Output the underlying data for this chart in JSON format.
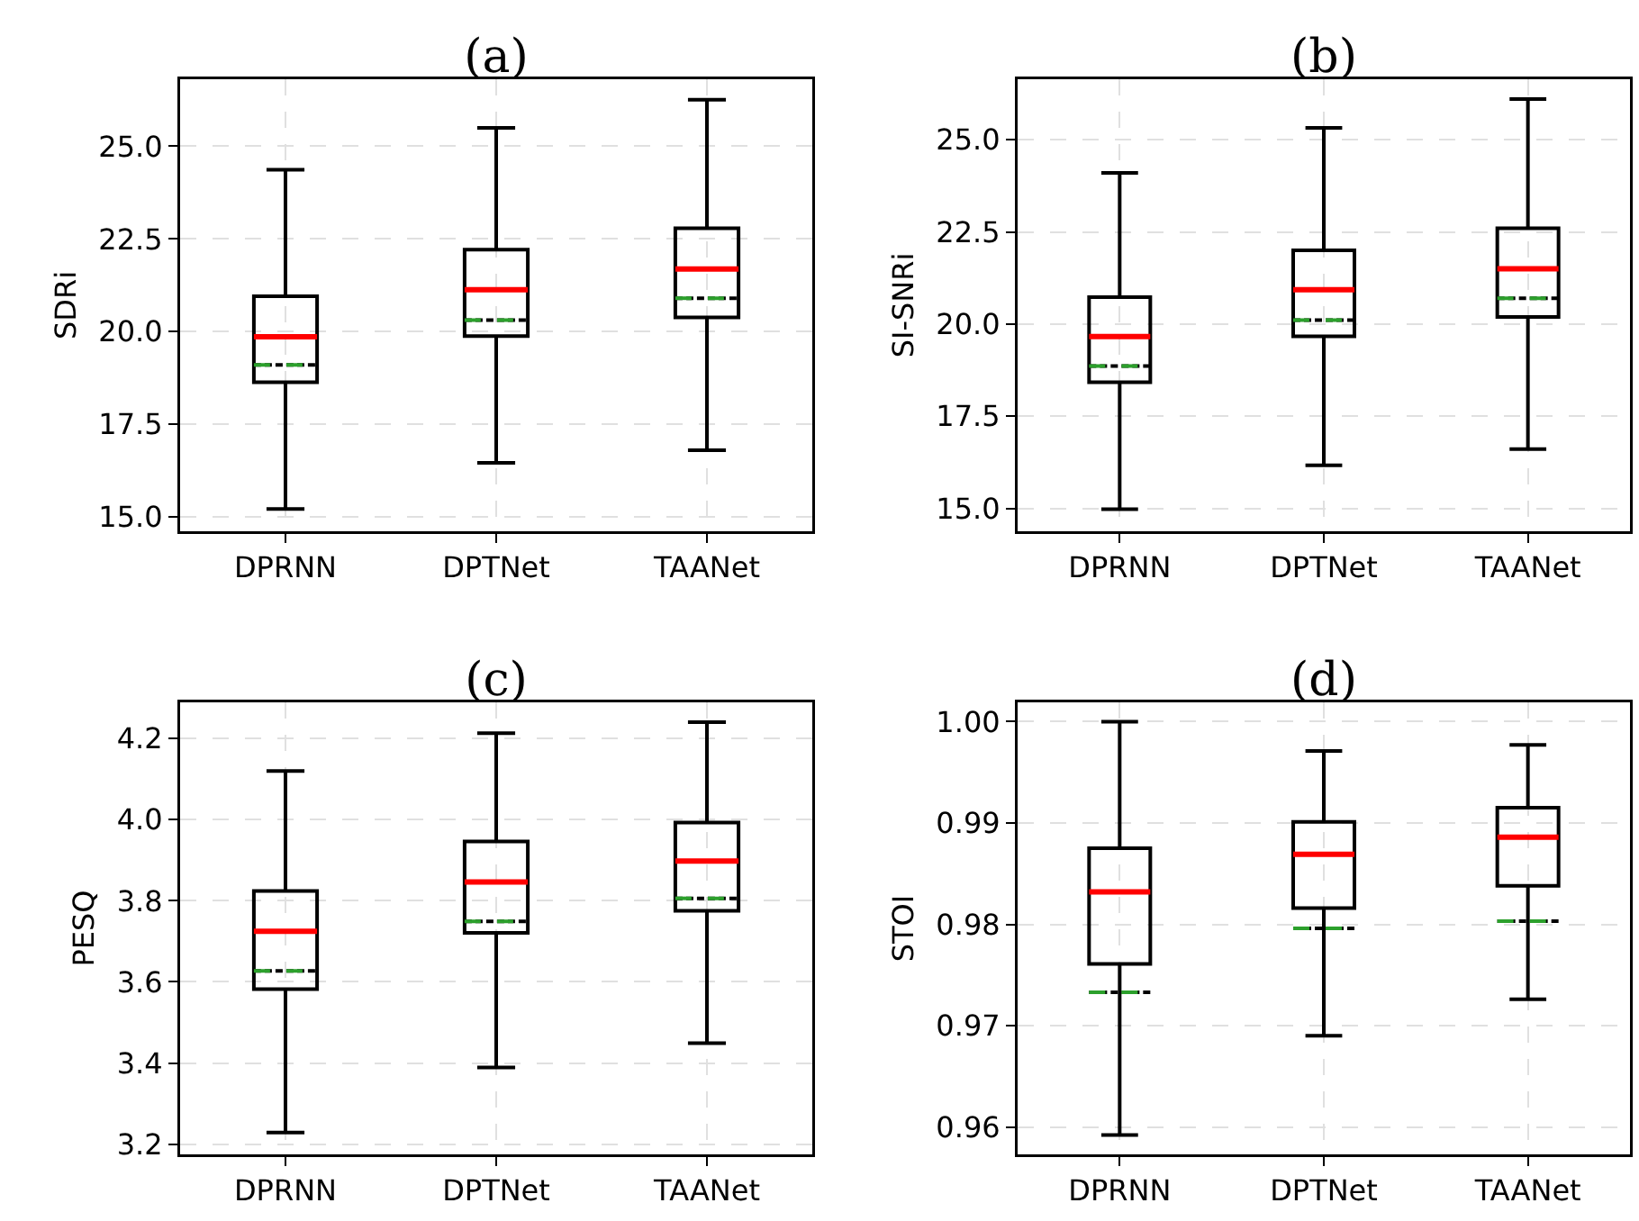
{
  "chart_data": [
    {
      "type": "box",
      "title": "(a)",
      "ylabel": "SDRi",
      "categories": [
        "DPRNN",
        "DPTNet",
        "TAANet"
      ],
      "ylim": [
        14.61,
        26.81
      ],
      "yticks": [
        {
          "value": 15,
          "label": "15.0"
        },
        17.5,
        {
          "value": 20,
          "label": "20.0"
        },
        22.5,
        {
          "value": 25,
          "label": "25.0"
        }
      ],
      "grid": true,
      "color": "#000000",
      "boxes": [
        {
          "low": 15.21,
          "q1": 18.63,
          "median": 19.86,
          "q3": 20.95,
          "high": 24.37,
          "mean": 19.1
        },
        {
          "low": 16.46,
          "q1": 19.88,
          "median": 21.13,
          "q3": 22.21,
          "high": 25.5,
          "mean": 20.31
        },
        {
          "low": 16.8,
          "q1": 20.38,
          "median": 21.69,
          "q3": 22.79,
          "high": 26.26,
          "mean": 20.9
        }
      ]
    },
    {
      "type": "box",
      "title": "(b)",
      "ylabel": "SI-SNRi",
      "categories": [
        "DPRNN",
        "DPTNet",
        "TAANet"
      ],
      "ylim": [
        14.38,
        26.64
      ],
      "yticks": [
        {
          "value": 15,
          "label": "15.0"
        },
        17.5,
        {
          "value": 20,
          "label": "20.0"
        },
        22.5,
        {
          "value": 25,
          "label": "25.0"
        }
      ],
      "grid": true,
      "color": "#000000",
      "boxes": [
        {
          "low": 14.98,
          "q1": 18.42,
          "median": 19.66,
          "q3": 20.73,
          "high": 24.1,
          "mean": 18.86
        },
        {
          "low": 16.17,
          "q1": 19.67,
          "median": 20.93,
          "q3": 22.0,
          "high": 25.32,
          "mean": 20.11
        },
        {
          "low": 16.61,
          "q1": 20.19,
          "median": 21.5,
          "q3": 22.6,
          "high": 26.1,
          "mean": 20.7
        }
      ]
    },
    {
      "type": "box",
      "title": "(c)",
      "ylabel": "PESQ",
      "categories": [
        "DPRNN",
        "DPTNet",
        "TAANet"
      ],
      "ylim": [
        3.175,
        4.289
      ],
      "yticks": [
        3.2,
        3.4,
        3.6,
        3.8,
        {
          "value": 4,
          "label": "4.0"
        },
        4.2
      ],
      "grid": true,
      "color": "#000000",
      "boxes": [
        {
          "low": 3.229,
          "q1": 3.582,
          "median": 3.725,
          "q3": 3.824,
          "high": 4.12,
          "mean": 3.627
        },
        {
          "low": 3.389,
          "q1": 3.721,
          "median": 3.846,
          "q3": 3.946,
          "high": 4.213,
          "mean": 3.749
        },
        {
          "low": 3.449,
          "q1": 3.775,
          "median": 3.898,
          "q3": 3.993,
          "high": 4.24,
          "mean": 3.806
        }
      ]
    },
    {
      "type": "box",
      "title": "(d)",
      "ylabel": "STOI",
      "categories": [
        "DPRNN",
        "DPTNet",
        "TAANet"
      ],
      "ylim": [
        0.9573,
        1.0019
      ],
      "yticks": [
        0.96,
        0.97,
        0.98,
        0.99,
        {
          "value": 1,
          "label": "1.00"
        }
      ],
      "grid": true,
      "color": "#000000",
      "boxes": [
        {
          "low": 0.9592,
          "q1": 0.9761,
          "median": 0.9832,
          "q3": 0.9875,
          "high": 1.0,
          "mean": 0.9733
        },
        {
          "low": 0.969,
          "q1": 0.9816,
          "median": 0.9869,
          "q3": 0.9901,
          "high": 0.9971,
          "mean": 0.9796
        },
        {
          "low": 0.9726,
          "q1": 0.9838,
          "median": 0.9886,
          "q3": 0.9915,
          "high": 0.9977,
          "mean": 0.9803
        }
      ]
    }
  ]
}
